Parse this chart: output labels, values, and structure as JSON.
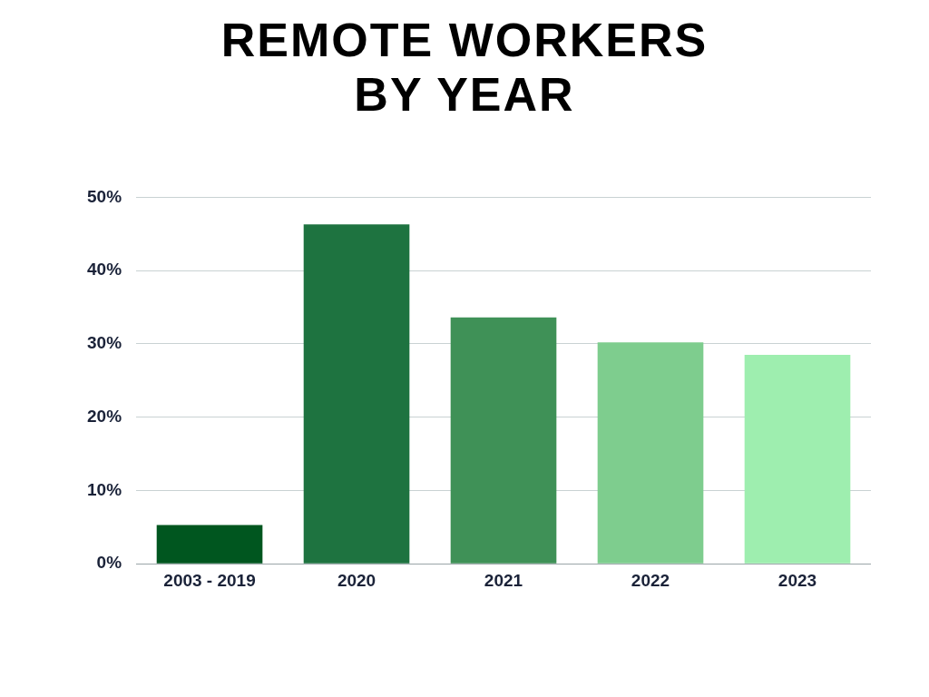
{
  "chart_data": {
    "type": "bar",
    "title": "REMOTE WORKERS BY YEAR",
    "categories": [
      "2003 - 2019",
      "2020",
      "2021",
      "2022",
      "2023"
    ],
    "values": [
      5.3,
      46.3,
      33.6,
      30.2,
      28.5
    ],
    "colors": [
      "#00561f",
      "#1e7340",
      "#3f9157",
      "#7ecd8e",
      "#9eeeaf"
    ],
    "ylim": [
      0,
      50
    ],
    "yticks": [
      {
        "value": 0,
        "label": "0%"
      },
      {
        "value": 10,
        "label": "10%"
      },
      {
        "value": 20,
        "label": "20%"
      },
      {
        "value": 30,
        "label": "30%"
      },
      {
        "value": 40,
        "label": "40%"
      },
      {
        "value": 50,
        "label": "50%"
      }
    ],
    "grid": "y"
  }
}
